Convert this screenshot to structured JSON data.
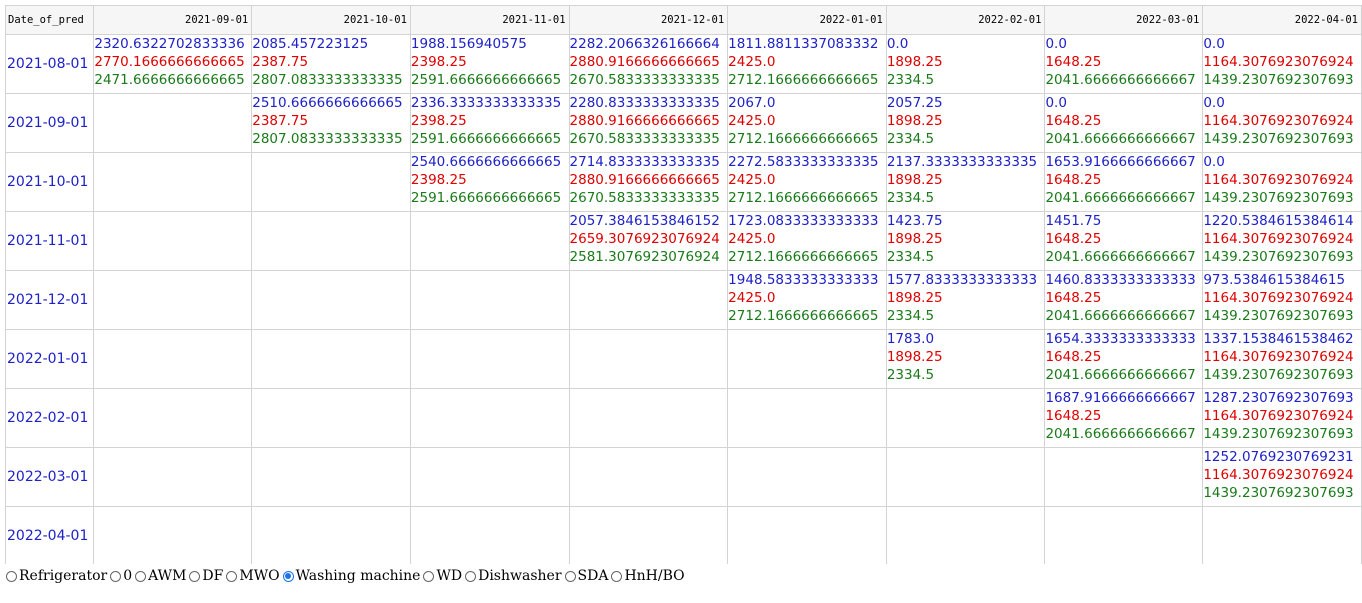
{
  "table": {
    "row_header_label": "Date_of_pred",
    "columns": [
      "2021-09-01",
      "2021-10-01",
      "2021-11-01",
      "2021-12-01",
      "2022-01-01",
      "2022-02-01",
      "2022-03-01",
      "2022-04-01"
    ],
    "rows": [
      {
        "label": "2021-08-01",
        "cells": [
          [
            "2320.6322702833336",
            "2770.1666666666665",
            "2471.6666666666665"
          ],
          [
            "2085.457223125",
            "2387.75",
            "2807.0833333333335"
          ],
          [
            "1988.156940575",
            "2398.25",
            "2591.6666666666665"
          ],
          [
            "2282.2066326166664",
            "2880.9166666666665",
            "2670.5833333333335"
          ],
          [
            "1811.8811337083332",
            "2425.0",
            "2712.1666666666665"
          ],
          [
            "0.0",
            "1898.25",
            "2334.5"
          ],
          [
            "0.0",
            "1648.25",
            "2041.6666666666667"
          ],
          [
            "0.0",
            "1164.3076923076924",
            "1439.2307692307693"
          ]
        ]
      },
      {
        "label": "2021-09-01",
        "cells": [
          null,
          [
            "2510.6666666666665",
            "2387.75",
            "2807.0833333333335"
          ],
          [
            "2336.3333333333335",
            "2398.25",
            "2591.6666666666665"
          ],
          [
            "2280.8333333333335",
            "2880.9166666666665",
            "2670.5833333333335"
          ],
          [
            "2067.0",
            "2425.0",
            "2712.1666666666665"
          ],
          [
            "2057.25",
            "1898.25",
            "2334.5"
          ],
          [
            "0.0",
            "1648.25",
            "2041.6666666666667"
          ],
          [
            "0.0",
            "1164.3076923076924",
            "1439.2307692307693"
          ]
        ]
      },
      {
        "label": "2021-10-01",
        "cells": [
          null,
          null,
          [
            "2540.6666666666665",
            "2398.25",
            "2591.6666666666665"
          ],
          [
            "2714.8333333333335",
            "2880.9166666666665",
            "2670.5833333333335"
          ],
          [
            "2272.5833333333335",
            "2425.0",
            "2712.1666666666665"
          ],
          [
            "2137.3333333333335",
            "1898.25",
            "2334.5"
          ],
          [
            "1653.9166666666667",
            "1648.25",
            "2041.6666666666667"
          ],
          [
            "0.0",
            "1164.3076923076924",
            "1439.2307692307693"
          ]
        ]
      },
      {
        "label": "2021-11-01",
        "cells": [
          null,
          null,
          null,
          [
            "2057.3846153846152",
            "2659.3076923076924",
            "2581.3076923076924"
          ],
          [
            "1723.0833333333333",
            "2425.0",
            "2712.1666666666665"
          ],
          [
            "1423.75",
            "1898.25",
            "2334.5"
          ],
          [
            "1451.75",
            "1648.25",
            "2041.6666666666667"
          ],
          [
            "1220.5384615384614",
            "1164.3076923076924",
            "1439.2307692307693"
          ]
        ]
      },
      {
        "label": "2021-12-01",
        "cells": [
          null,
          null,
          null,
          null,
          [
            "1948.5833333333333",
            "2425.0",
            "2712.1666666666665"
          ],
          [
            "1577.8333333333333",
            "1898.25",
            "2334.5"
          ],
          [
            "1460.8333333333333",
            "1648.25",
            "2041.6666666666667"
          ],
          [
            "973.5384615384615",
            "1164.3076923076924",
            "1439.2307692307693"
          ]
        ]
      },
      {
        "label": "2022-01-01",
        "cells": [
          null,
          null,
          null,
          null,
          null,
          [
            "1783.0",
            "1898.25",
            "2334.5"
          ],
          [
            "1654.3333333333333",
            "1648.25",
            "2041.6666666666667"
          ],
          [
            "1337.1538461538462",
            "1164.3076923076924",
            "1439.2307692307693"
          ]
        ]
      },
      {
        "label": "2022-02-01",
        "cells": [
          null,
          null,
          null,
          null,
          null,
          null,
          [
            "1687.9166666666667",
            "1648.25",
            "2041.6666666666667"
          ],
          [
            "1287.2307692307693",
            "1164.3076923076924",
            "1439.2307692307693"
          ]
        ]
      },
      {
        "label": "2022-03-01",
        "cells": [
          null,
          null,
          null,
          null,
          null,
          null,
          null,
          [
            "1252.0769230769231",
            "1164.3076923076924",
            "1439.2307692307693"
          ]
        ]
      },
      {
        "label": "2022-04-01",
        "cells": [
          null,
          null,
          null,
          null,
          null,
          null,
          null,
          null
        ]
      }
    ]
  },
  "colors": {
    "value_1": "#1e22c8",
    "value_2": "#e00000",
    "value_3": "#1a7a1a"
  },
  "radio_group": {
    "options": [
      "Refrigerator",
      "0",
      "AWM",
      "DF",
      "MWO",
      "Washing machine",
      "WD",
      "Dishwasher",
      "SDA",
      "HnH/BO"
    ],
    "selected": "Washing machine"
  }
}
